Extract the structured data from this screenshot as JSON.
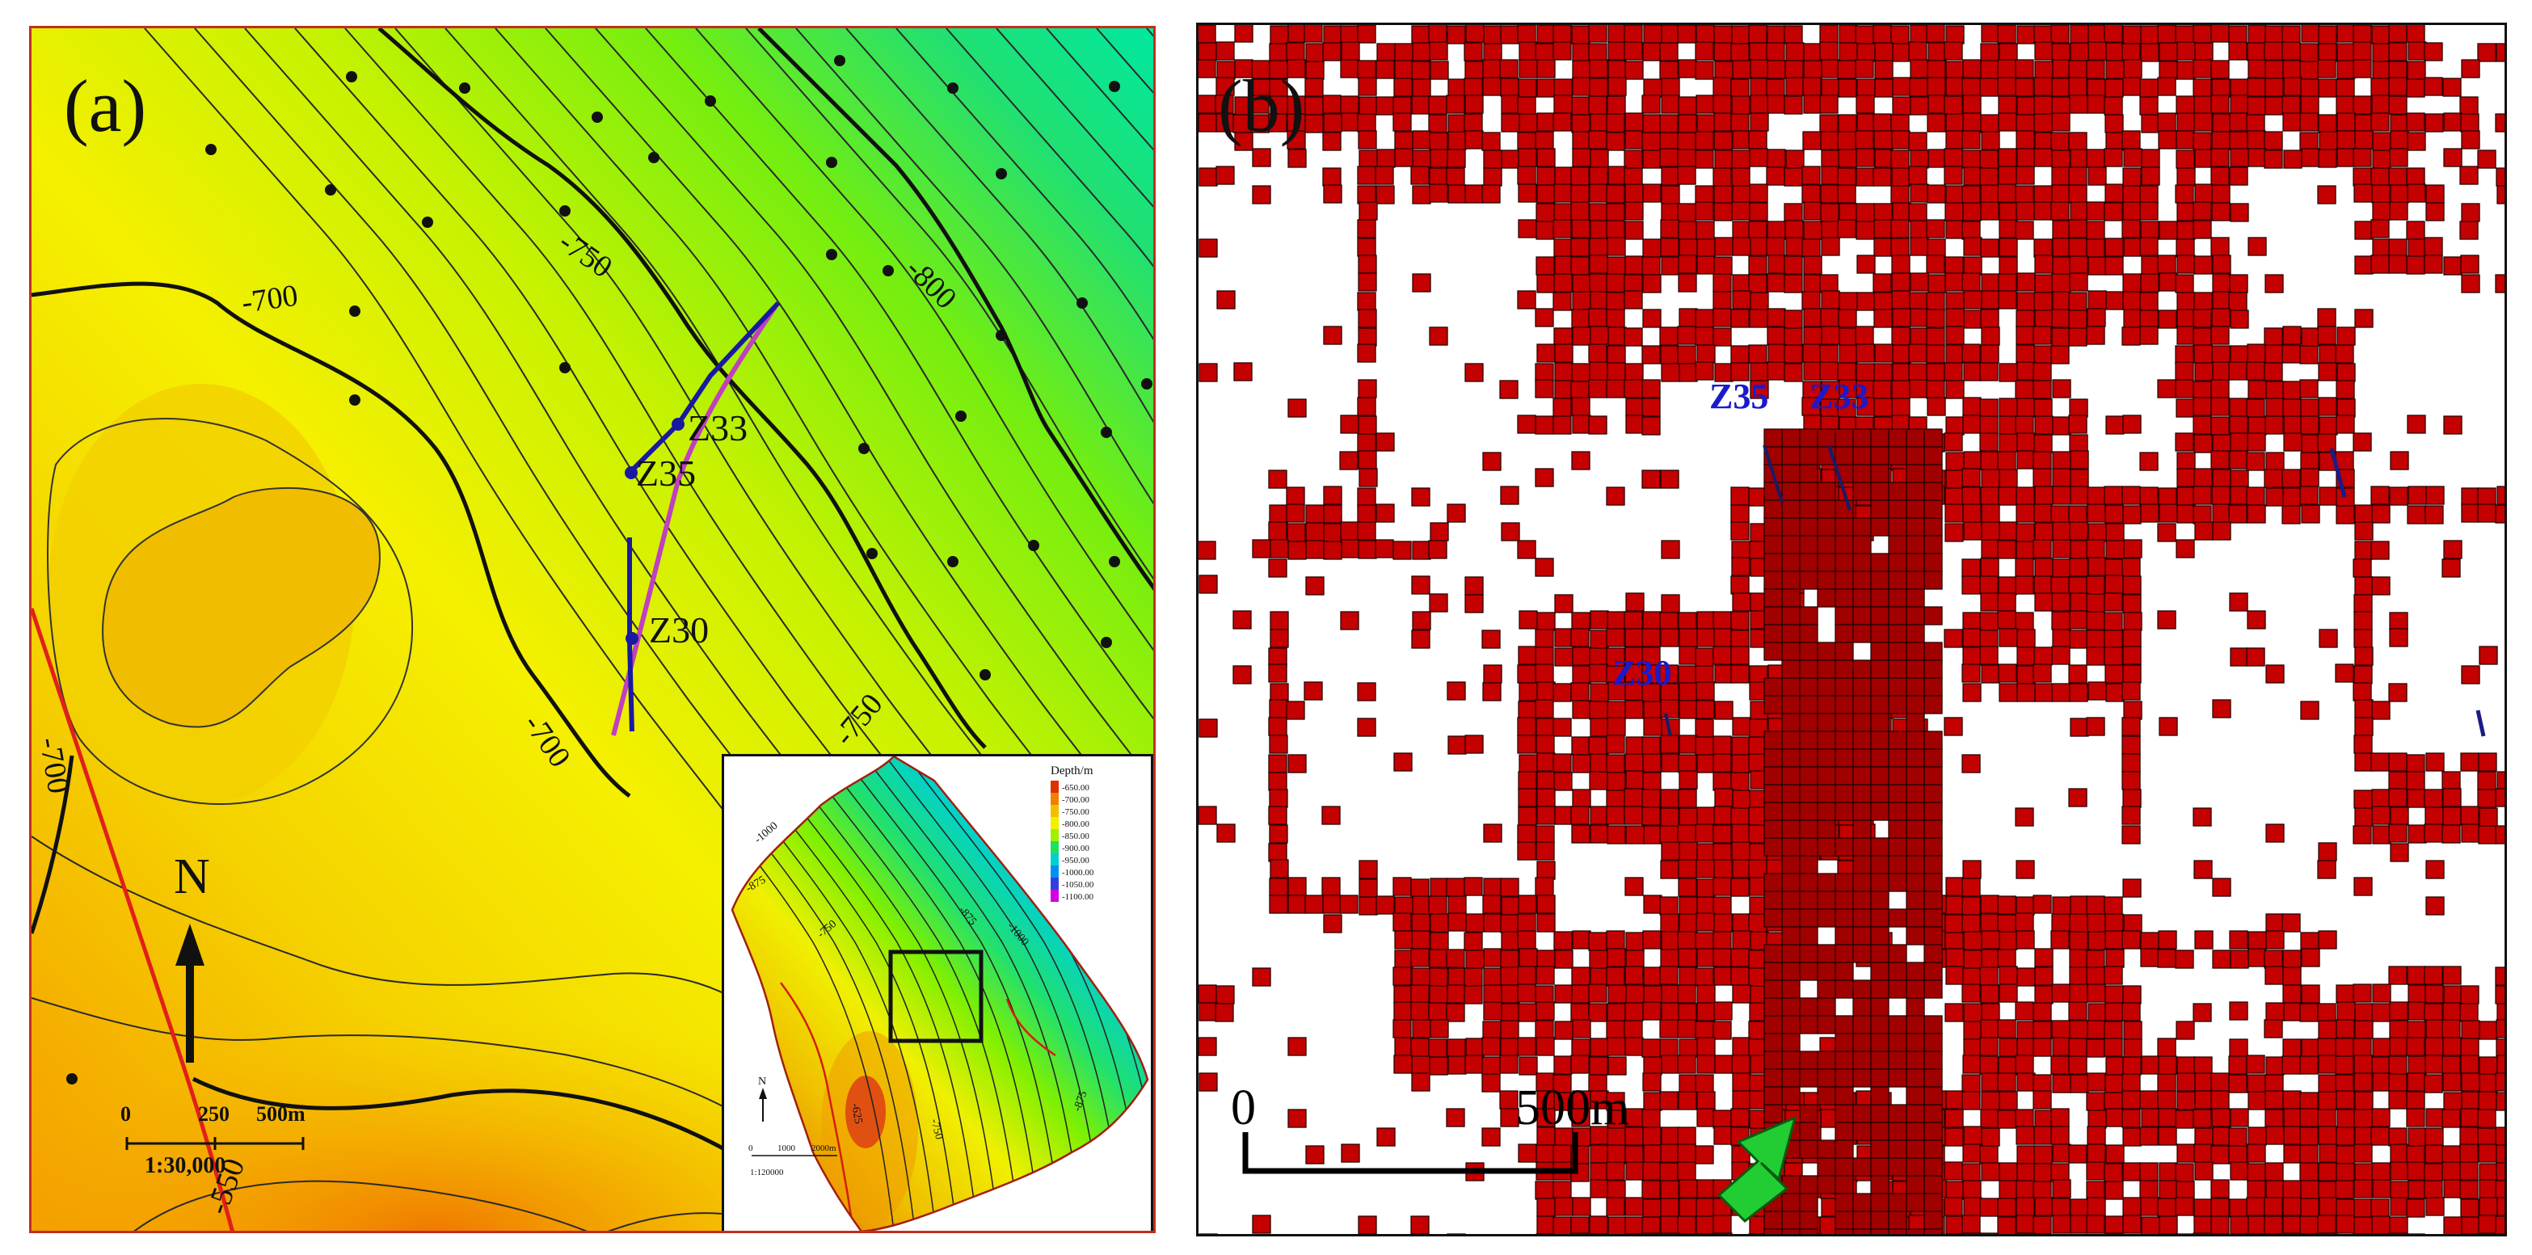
{
  "figure": {
    "panel_a": {
      "label": "(a)",
      "contour_labels": [
        "-700",
        "-750",
        "-800",
        "-700",
        "-750",
        "-700",
        "-550"
      ],
      "wells": [
        "Z33",
        "Z35",
        "Z30"
      ],
      "north_label": "N",
      "scale_ticks": [
        "0",
        "250",
        "500m"
      ],
      "scale_ratio": "1:30,000",
      "colors": {
        "shallow": "#f7d000",
        "mid": "#c8f000",
        "deep": "#00e88a",
        "fault": "#e0201a",
        "well_blue": "#1a1aa0",
        "well_magenta": "#c040c0"
      },
      "inset": {
        "legend_title": "Depth/m",
        "legend_values": [
          "-650.00",
          "-700.00",
          "-750.00",
          "-800.00",
          "-850.00",
          "-900.00",
          "-950.00",
          "-1000.00",
          "-1050.00",
          "-1100.00"
        ],
        "legend_colors": [
          "#e03000",
          "#f08000",
          "#f0c000",
          "#f0f000",
          "#a0f000",
          "#20e060",
          "#00d0d0",
          "#0090f0",
          "#3040e0",
          "#d000e0"
        ],
        "north_label": "N",
        "scale_ticks": [
          "0",
          "1000",
          "2000m"
        ],
        "scale_ratio": "1:120000",
        "contour_labels": [
          "-1000",
          "-875",
          "-750",
          "-625",
          "-875",
          "-750",
          "-1000",
          "-875"
        ]
      }
    },
    "panel_b": {
      "label": "(b)",
      "wells": [
        "Z35",
        "Z33",
        "Z30"
      ],
      "scale_zero": "0",
      "scale_end": "500m",
      "colors": {
        "cell_fill": "#c40000",
        "cell_stroke": "#2a0000",
        "well_label": "#1a1acc",
        "arrow": "#22cc33"
      }
    }
  }
}
